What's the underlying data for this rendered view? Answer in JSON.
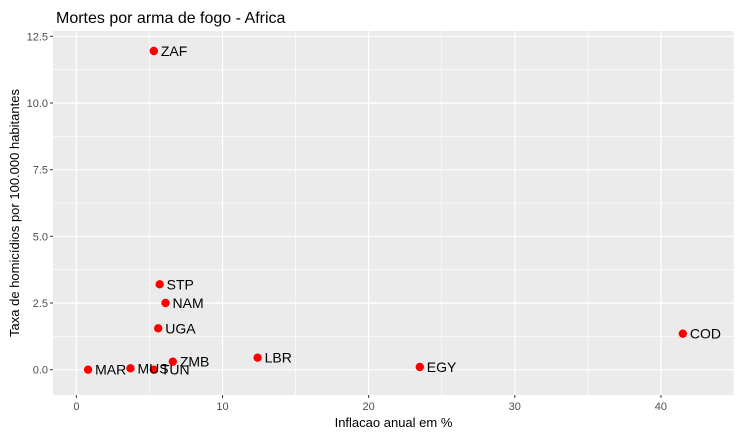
{
  "chart_data": {
    "type": "scatter",
    "title": "Mortes por arma de fogo - Africa",
    "xlabel": "Inflacao anual em %",
    "ylabel": "Taxa de homicídios por 100.000 habitantes",
    "xlim": [
      -1.6,
      45.0
    ],
    "ylim": [
      -0.95,
      12.7
    ],
    "x_ticks": [
      0,
      10,
      20,
      30,
      40
    ],
    "x_tick_labels": [
      "0",
      "10",
      "20",
      "30",
      "40"
    ],
    "y_ticks": [
      0,
      2.5,
      5,
      7.5,
      10,
      12.5
    ],
    "y_tick_labels": [
      "0.0",
      "2.5",
      "5.0",
      "7.5",
      "10.0",
      "12.5"
    ],
    "grid": true,
    "legend": "none",
    "colors": {
      "point": "#ff0000",
      "panel": "#ebebeb",
      "grid": "#ffffff"
    },
    "points": [
      {
        "label": "ZAF",
        "x": 5.3,
        "y": 11.95
      },
      {
        "label": "STP",
        "x": 5.7,
        "y": 3.2
      },
      {
        "label": "NAM",
        "x": 6.1,
        "y": 2.5
      },
      {
        "label": "UGA",
        "x": 5.6,
        "y": 1.55
      },
      {
        "label": "ZMB",
        "x": 6.6,
        "y": 0.3
      },
      {
        "label": "LBR",
        "x": 12.4,
        "y": 0.45
      },
      {
        "label": "EGY",
        "x": 23.5,
        "y": 0.1
      },
      {
        "label": "COD",
        "x": 41.5,
        "y": 1.35
      },
      {
        "label": "MAR",
        "x": 0.8,
        "y": 0.0
      },
      {
        "label": "MUS",
        "x": 3.7,
        "y": 0.05
      },
      {
        "label": "TUN",
        "x": 5.3,
        "y": 0.0
      }
    ]
  }
}
